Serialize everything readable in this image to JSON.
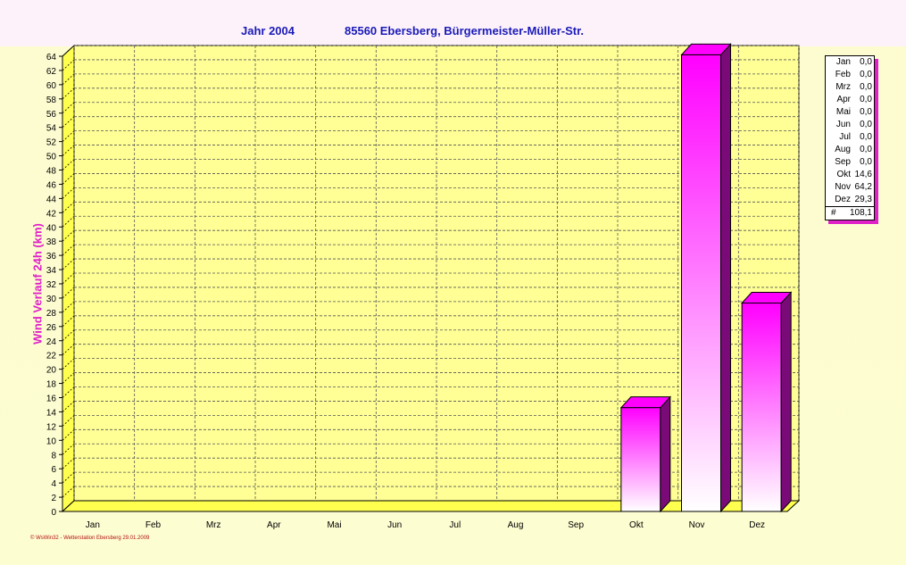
{
  "title": {
    "year_label": "Jahr  2004",
    "location": "85560 Ebersberg, Bürgermeister-Müller-Str."
  },
  "footer": "© WsWin32  -  Wetterstation Ebersberg  29.01.2009",
  "colors": {
    "bar_top": "#ff00ff",
    "bar_bottom": "#ffffff",
    "bar_side": "#7a0a78",
    "ylabel": "#e020c8",
    "title": "#1a1ab8",
    "plot_bg": "#ffff96",
    "floor": "#ffff50"
  },
  "legend": {
    "rows": [
      {
        "month": "Jan",
        "value": "0,0"
      },
      {
        "month": "Feb",
        "value": "0,0"
      },
      {
        "month": "Mrz",
        "value": "0,0"
      },
      {
        "month": "Apr",
        "value": "0,0"
      },
      {
        "month": "Mai",
        "value": "0,0"
      },
      {
        "month": "Jun",
        "value": "0,0"
      },
      {
        "month": "Jul",
        "value": "0,0"
      },
      {
        "month": "Aug",
        "value": "0,0"
      },
      {
        "month": "Sep",
        "value": "0,0"
      },
      {
        "month": "Okt",
        "value": "14,6"
      },
      {
        "month": "Nov",
        "value": "64,2"
      },
      {
        "month": "Dez",
        "value": "29,3"
      }
    ],
    "total_symbol": "#",
    "total_value": "108,1"
  },
  "chart_data": {
    "type": "bar",
    "categories": [
      "Jan",
      "Feb",
      "Mrz",
      "Apr",
      "Mai",
      "Jun",
      "Jul",
      "Aug",
      "Sep",
      "Okt",
      "Nov",
      "Dez"
    ],
    "values": [
      0,
      0,
      0,
      0,
      0,
      0,
      0,
      0,
      0,
      14.6,
      64.2,
      29.3
    ],
    "ylabel": "Wind Verlauf 24h  (km)",
    "xlabel": "",
    "ylim": [
      0,
      64
    ],
    "yticks": [
      0,
      2,
      4,
      6,
      8,
      10,
      12,
      14,
      16,
      18,
      20,
      22,
      24,
      26,
      28,
      30,
      32,
      34,
      36,
      38,
      40,
      42,
      44,
      46,
      48,
      50,
      52,
      54,
      56,
      58,
      60,
      62,
      64
    ],
    "grid": true,
    "legend_placement": "right"
  }
}
